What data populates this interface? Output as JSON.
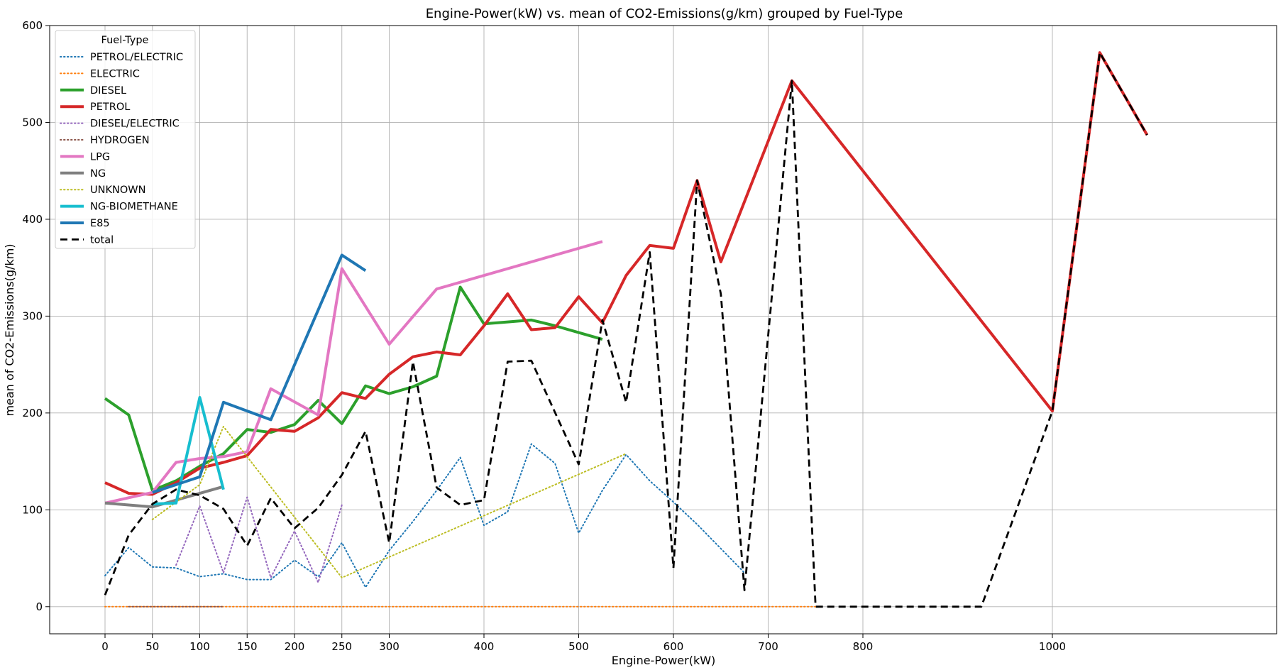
{
  "chart_data": {
    "type": "line",
    "title": "Engine-Power(kW) vs. mean of CO2-Emissions(g/km) grouped by Fuel-Type",
    "xlabel": "Engine-Power(kW)",
    "ylabel": "mean of CO2-Emissions(g/km)",
    "x_ticks": [
      0,
      50,
      100,
      150,
      200,
      250,
      300,
      400,
      500,
      600,
      700,
      800,
      1000
    ],
    "y_ticks": [
      0,
      100,
      200,
      300,
      400,
      500,
      600
    ],
    "ylim": [
      -28,
      600
    ],
    "grid": true,
    "legend_title": "Fuel-Type",
    "legend_position": "upper-left",
    "series": [
      {
        "name": "PETROL/ELECTRIC",
        "color": "#1f77b4",
        "style": "dotted",
        "x": [
          0,
          25,
          50,
          75,
          100,
          125,
          150,
          175,
          200,
          225,
          250,
          275,
          300,
          325,
          350,
          375,
          400,
          425,
          450,
          475,
          500,
          525,
          550,
          575,
          600,
          625,
          650,
          675
        ],
        "y": [
          32,
          61,
          41,
          40,
          31,
          34,
          28,
          28,
          48,
          31,
          66,
          20,
          58,
          88,
          120,
          154,
          84,
          98,
          168,
          148,
          76,
          120,
          157,
          130,
          108,
          85,
          60,
          35
        ]
      },
      {
        "name": "ELECTRIC",
        "color": "#ff7f0e",
        "style": "dotted",
        "x": [
          0,
          25,
          50,
          75,
          100,
          125,
          150,
          175,
          200,
          225,
          250,
          275,
          300,
          325,
          350,
          375,
          400,
          425,
          450,
          475,
          500,
          525,
          550,
          575,
          600,
          625,
          650,
          675,
          700,
          725,
          750
        ],
        "y": [
          0,
          0,
          0,
          0,
          0,
          0,
          0,
          0,
          0,
          0,
          0,
          0,
          0,
          0,
          0,
          0,
          0,
          0,
          0,
          0,
          0,
          0,
          0,
          0,
          0,
          0,
          0,
          0,
          0,
          0,
          0
        ]
      },
      {
        "name": "DIESEL",
        "color": "#2ca02c",
        "style": "solid",
        "x": [
          0,
          25,
          50,
          75,
          100,
          125,
          150,
          175,
          200,
          225,
          250,
          275,
          300,
          325,
          350,
          375,
          400,
          425,
          450,
          475,
          500,
          525
        ],
        "y": [
          215,
          198,
          120,
          130,
          145,
          158,
          183,
          180,
          188,
          213,
          189,
          228,
          220,
          227,
          238,
          330,
          292,
          294,
          296,
          290,
          283,
          276
        ]
      },
      {
        "name": "PETROL",
        "color": "#d62728",
        "style": "solid",
        "x": [
          0,
          25,
          50,
          75,
          100,
          125,
          150,
          175,
          200,
          225,
          250,
          275,
          300,
          325,
          350,
          375,
          400,
          425,
          450,
          475,
          500,
          525,
          550,
          575,
          600,
          625,
          650,
          725,
          1000,
          1050,
          1100
        ],
        "y": [
          128,
          117,
          116,
          128,
          143,
          149,
          156,
          183,
          181,
          195,
          221,
          215,
          240,
          258,
          263,
          260,
          290,
          323,
          286,
          288,
          320,
          293,
          342,
          373,
          370,
          440,
          356,
          543,
          202,
          572,
          487
        ]
      },
      {
        "name": "DIESEL/ELECTRIC",
        "color": "#9467bd",
        "style": "dotted",
        "x": [
          75,
          100,
          125,
          150,
          175,
          200,
          225,
          250
        ],
        "y": [
          43,
          104,
          35,
          113,
          30,
          78,
          25,
          105
        ]
      },
      {
        "name": "HYDROGEN",
        "color": "#8c564b",
        "style": "dotted",
        "x": [
          25,
          50,
          75,
          100,
          125
        ],
        "y": [
          0,
          0,
          0,
          0,
          0
        ]
      },
      {
        "name": "LPG",
        "color": "#e377c2",
        "style": "solid",
        "x": [
          0,
          50,
          75,
          100,
          125,
          150,
          175,
          225,
          250,
          300,
          350,
          525
        ],
        "y": [
          107,
          118,
          149,
          153,
          155,
          160,
          225,
          198,
          349,
          271,
          328,
          377
        ]
      },
      {
        "name": "NG",
        "color": "#7f7f7f",
        "style": "solid",
        "x": [
          0,
          50,
          100,
          125
        ],
        "y": [
          107,
          103,
          117,
          124
        ]
      },
      {
        "name": "UNKNOWN",
        "color": "#bcbd22",
        "style": "dotted",
        "x": [
          50,
          100,
          125,
          250,
          550
        ],
        "y": [
          90,
          126,
          186,
          30,
          158
        ]
      },
      {
        "name": "NG-BIOMETHANE",
        "color": "#17becf",
        "style": "solid",
        "x": [
          50,
          75,
          100,
          125
        ],
        "y": [
          106,
          107,
          216,
          121
        ]
      },
      {
        "name": "E85",
        "color": "#1f77b4",
        "style": "solid",
        "x": [
          50,
          100,
          125,
          175,
          250,
          275
        ],
        "y": [
          118,
          134,
          211,
          193,
          363,
          347
        ]
      },
      {
        "name": "total",
        "color": "#000000",
        "style": "dashed",
        "x": [
          0,
          25,
          50,
          75,
          100,
          125,
          150,
          175,
          200,
          225,
          250,
          275,
          300,
          325,
          350,
          375,
          400,
          425,
          450,
          500,
          525,
          550,
          575,
          600,
          625,
          650,
          675,
          725,
          750,
          925,
          1000,
          1050,
          1100
        ],
        "y": [
          12,
          74,
          106,
          121,
          115,
          101,
          63,
          112,
          81,
          102,
          136,
          181,
          66,
          253,
          123,
          105,
          110,
          253,
          254,
          147,
          296,
          211,
          366,
          40,
          440,
          323,
          17,
          543,
          0,
          0,
          202,
          572,
          487
        ]
      }
    ]
  }
}
